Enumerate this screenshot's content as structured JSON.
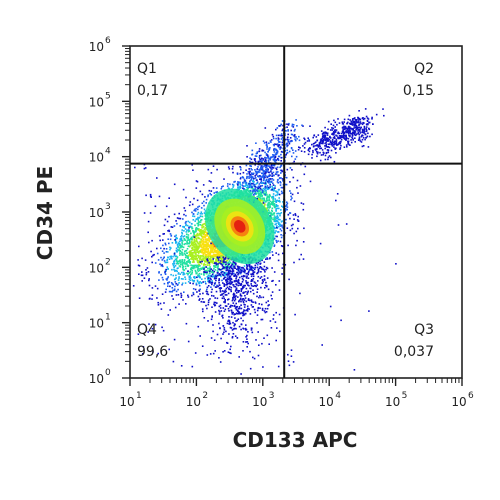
{
  "chart_data": {
    "type": "scatter",
    "subtype": "flow-cytometry-density-dot-plot",
    "xlabel": "CD133 APC",
    "ylabel": "CD34 PE",
    "x_scale": "log",
    "y_scale": "log",
    "xlim": [
      10,
      1000000
    ],
    "ylim": [
      1,
      1000000
    ],
    "x_ticks": [
      {
        "base": "10",
        "exp": "1",
        "value": 10
      },
      {
        "base": "10",
        "exp": "2",
        "value": 100
      },
      {
        "base": "10",
        "exp": "3",
        "value": 1000
      },
      {
        "base": "10",
        "exp": "4",
        "value": 10000
      },
      {
        "base": "10",
        "exp": "5",
        "value": 100000
      },
      {
        "base": "10",
        "exp": "6",
        "value": 1000000
      }
    ],
    "y_ticks": [
      {
        "base": "10",
        "exp": "0",
        "value": 1
      },
      {
        "base": "10",
        "exp": "1",
        "value": 10
      },
      {
        "base": "10",
        "exp": "2",
        "value": 100
      },
      {
        "base": "10",
        "exp": "3",
        "value": 1000
      },
      {
        "base": "10",
        "exp": "4",
        "value": 10000
      },
      {
        "base": "10",
        "exp": "5",
        "value": 100000
      },
      {
        "base": "10",
        "exp": "6",
        "value": 1000000
      }
    ],
    "gate": {
      "x": 2100,
      "y": 7500
    },
    "quadrants": [
      {
        "id": "Q1",
        "name": "Q1",
        "value": "0,17",
        "position": "top-left"
      },
      {
        "id": "Q2",
        "name": "Q2",
        "value": "0,15",
        "position": "top-right"
      },
      {
        "id": "Q3",
        "name": "Q3",
        "value": "0,037",
        "position": "bottom-right"
      },
      {
        "id": "Q4",
        "name": "Q4",
        "value": "99,6",
        "position": "bottom-left"
      }
    ],
    "density": {
      "main_population_center": {
        "x": 450,
        "y": 550
      },
      "secondary_population_center": {
        "x": 25000,
        "y": 45000
      },
      "colormap": [
        "#1010c8",
        "#1e5cf0",
        "#18b4f0",
        "#20e0a0",
        "#a8f020",
        "#f8e010",
        "#f87010",
        "#e01010"
      ]
    },
    "grid": false,
    "legend": "none"
  }
}
